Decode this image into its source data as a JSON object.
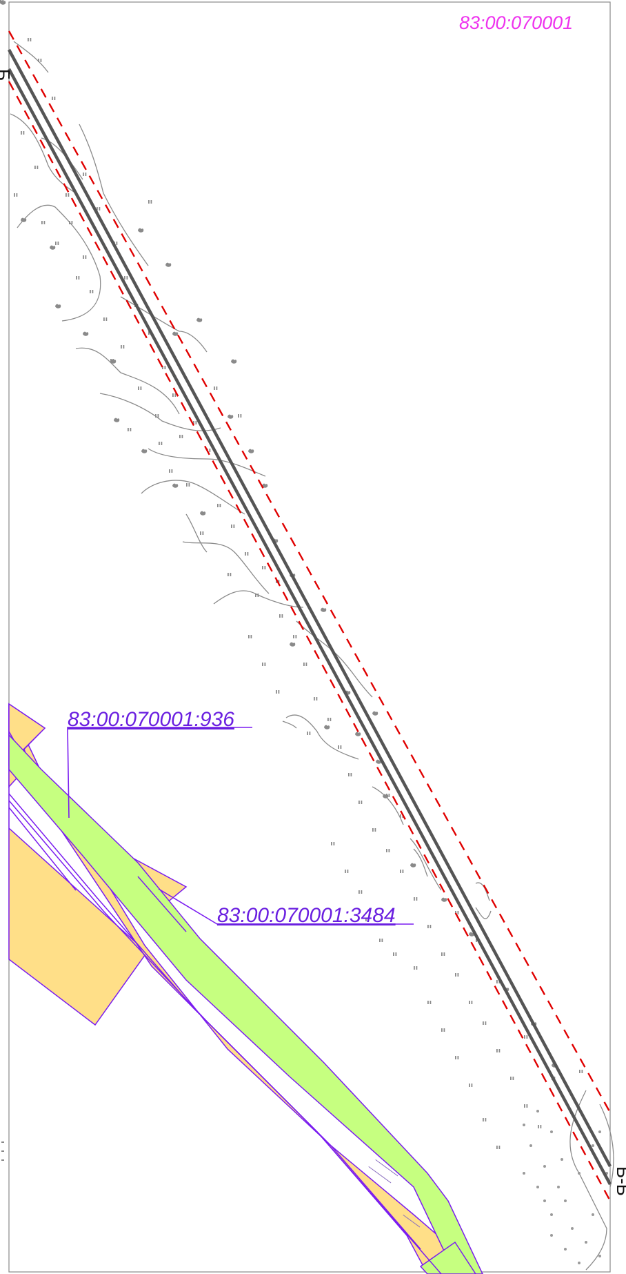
{
  "map": {
    "quarter_label": "83:00:070001",
    "parcels": [
      {
        "id": "parcel-936",
        "cadastral_number": "83:00:070001:936",
        "fill": "#c6ff80"
      },
      {
        "id": "parcel-3484",
        "cadastral_number": "83:00:070001:3484",
        "fill": "#ffdf88"
      }
    ],
    "section_labels": {
      "start": "Б",
      "end": "Б-Б"
    },
    "colors": {
      "quarter_label": "#ee33ee",
      "parcel_outline": "#7a1cf0",
      "parcel_label": "#6a1fe0",
      "pipeline": "#555555",
      "protection_zone": "#e00000",
      "terrain": "#8a8a8a",
      "frame": "#777777"
    },
    "icons": [
      "marsh-symbol",
      "shrub-symbol",
      "contour-line"
    ]
  }
}
